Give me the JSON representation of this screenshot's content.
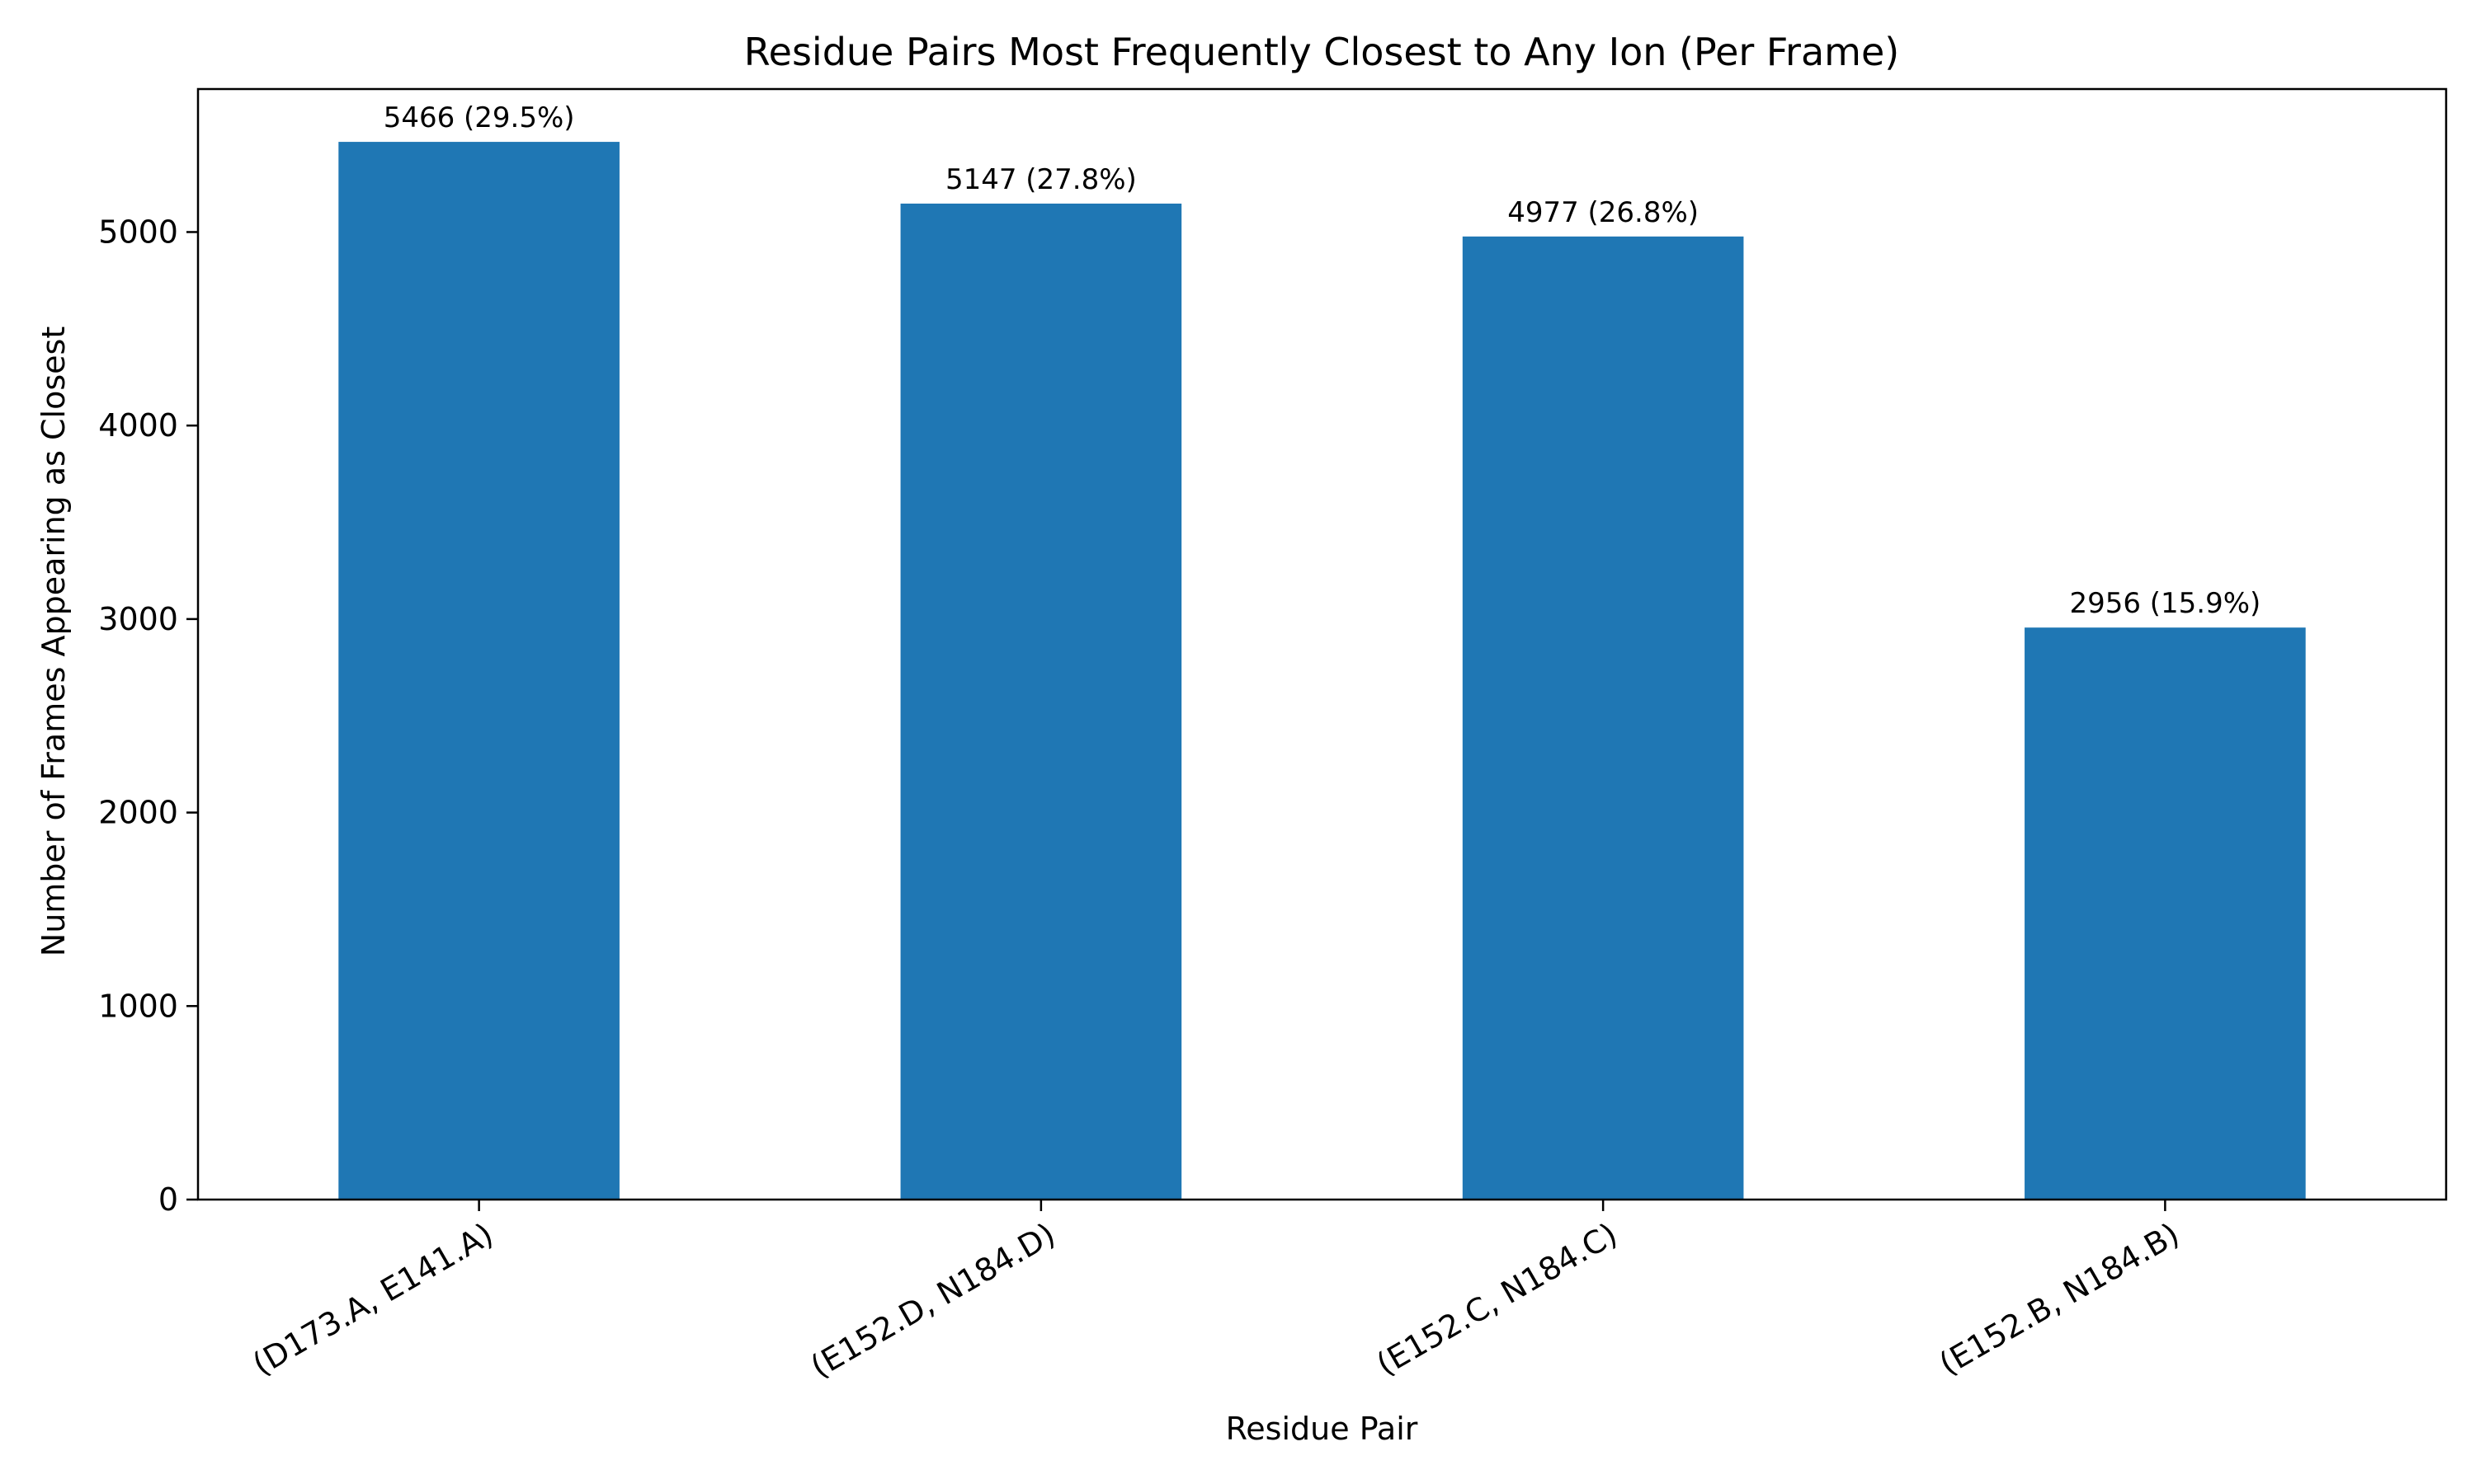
{
  "chart_data": {
    "type": "bar",
    "title": "Residue Pairs Most Frequently Closest to Any Ion (Per Frame)",
    "xlabel": "Residue Pair",
    "ylabel": "Number of Frames Appearing as Closest",
    "categories": [
      "(D173.A, E141.A)",
      "(E152.D, N184.D)",
      "(E152.C, N184.C)",
      "(E152.B, N184.B)"
    ],
    "values": [
      5466,
      5147,
      4977,
      2956
    ],
    "bar_labels": [
      "5466 (29.5%)",
      "5147 (27.8%)",
      "4977 (26.8%)",
      "2956 (15.9%)"
    ],
    "yticks": [
      0,
      1000,
      2000,
      3000,
      4000,
      5000
    ],
    "ylim": [
      0,
      5739
    ],
    "grid": false,
    "bar_color": "#1f77b4"
  }
}
